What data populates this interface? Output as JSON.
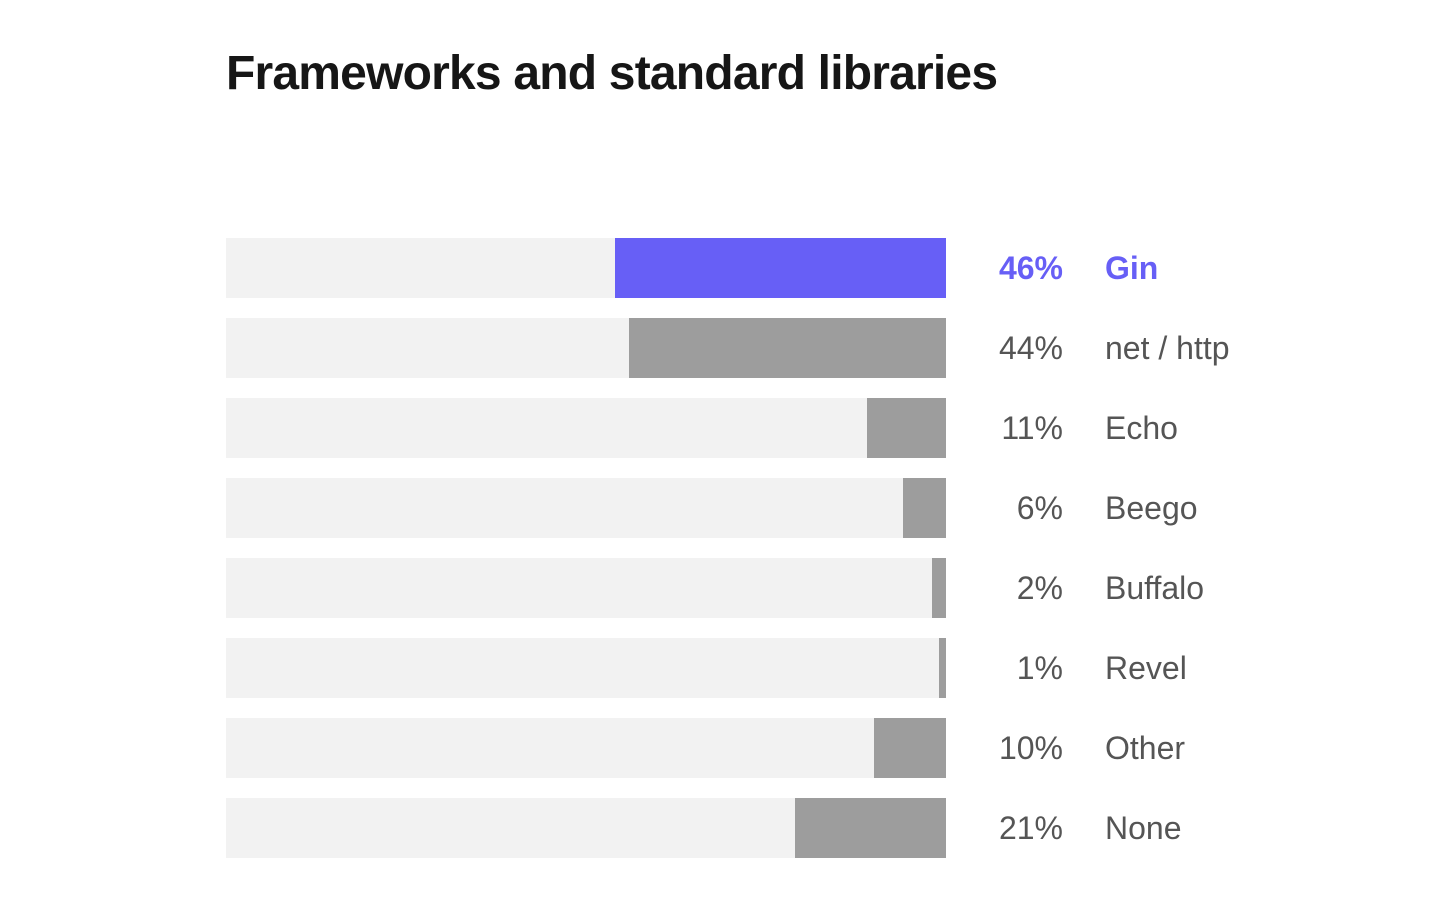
{
  "chart_data": {
    "type": "bar",
    "orientation": "horizontal",
    "title": "Frameworks and standard libraries",
    "categories": [
      "Gin",
      "net / http",
      "Echo",
      "Beego",
      "Buffalo",
      "Revel",
      "Other",
      "None"
    ],
    "values": [
      46,
      44,
      11,
      6,
      2,
      1,
      10,
      21
    ],
    "value_labels": [
      "46%",
      "44%",
      "11%",
      "6%",
      "2%",
      "1%",
      "10%",
      "21%"
    ],
    "unit": "%",
    "xlim": [
      0,
      100
    ],
    "highlight_index": 0,
    "colors": {
      "highlight": "#675ff6",
      "bar": "#9d9d9d",
      "track": "#f2f2f2",
      "text": "#555555",
      "title": "#161616"
    },
    "grid": false,
    "legend": "none"
  }
}
